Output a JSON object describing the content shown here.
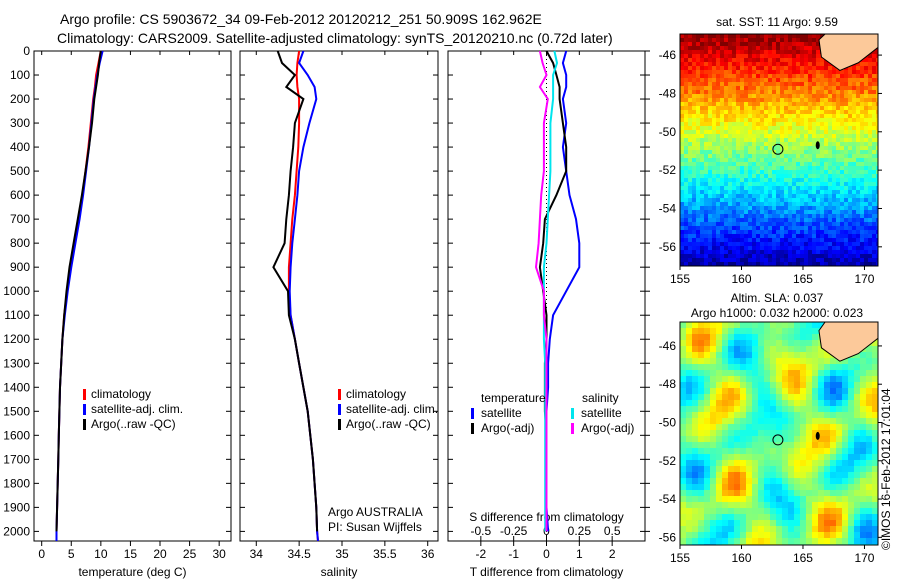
{
  "title_line1": "Argo profile: CS 5903672_34 09-Feb-2012 20120212_251 50.909S 162.962E",
  "title_line2": "Climatology: CARS2009. Satellite-adjusted climatology: synTS_20120210.nc (0.72d later)",
  "colors": {
    "climatology": "#ff0000",
    "satellite": "#0000ff",
    "argo": "#000000",
    "sal_satellite": "#00e5ee",
    "sal_argo": "#ff00ff"
  },
  "chart_data": [
    {
      "type": "line",
      "name": "temperature",
      "xlabel": "temperature (deg C)",
      "xlim": [
        -1.3,
        32
      ],
      "xticks": [
        0,
        5,
        10,
        15,
        20,
        25,
        30
      ],
      "ylim": [
        0,
        2040
      ],
      "yreverse": true,
      "yticks": [
        0,
        100,
        200,
        300,
        400,
        500,
        600,
        700,
        800,
        900,
        1000,
        1100,
        1200,
        1300,
        1400,
        1500,
        1600,
        1700,
        1800,
        1900,
        2000
      ],
      "depth": [
        0,
        50,
        100,
        150,
        200,
        300,
        400,
        500,
        600,
        700,
        800,
        900,
        1000,
        1100,
        1200,
        1300,
        1400,
        1500,
        1600,
        1700,
        1800,
        1900,
        2000,
        2040
      ],
      "legend": [
        "climatology",
        "satellite-adj. clim.",
        "Argo(..raw -QC)"
      ],
      "series": [
        {
          "name": "climatology",
          "color": "#ff0000",
          "values": [
            10,
            9.6,
            9.2,
            9.0,
            8.7,
            8.3,
            7.9,
            7.4,
            6.9,
            6.3,
            5.6,
            4.9,
            4.3,
            3.8,
            3.5,
            3.3,
            3.1,
            3.0,
            2.9,
            2.8,
            2.7,
            2.6,
            2.5,
            2.5
          ]
        },
        {
          "name": "satellite-adj. clim.",
          "color": "#0000ff",
          "values": [
            10.3,
            9.8,
            9.4,
            9.1,
            8.8,
            8.4,
            8.0,
            7.5,
            7.0,
            6.4,
            5.7,
            5.0,
            4.4,
            3.9,
            3.5,
            3.3,
            3.1,
            3.0,
            2.9,
            2.8,
            2.7,
            2.6,
            2.5,
            2.5
          ]
        },
        {
          "name": "Argo(..raw -QC)",
          "color": "#000000",
          "values": [
            10.0,
            9.7,
            9.5,
            9.2,
            8.9,
            8.5,
            8.0,
            7.4,
            6.8,
            6.1,
            5.4,
            4.7,
            4.2,
            3.8,
            3.5,
            3.3,
            3.1,
            3.0,
            2.9,
            2.8,
            2.7,
            2.6,
            2.5,
            null
          ]
        }
      ]
    },
    {
      "type": "line",
      "name": "salinity",
      "xlabel": "salinity",
      "xlim": [
        33.81,
        36.12
      ],
      "xticks": [
        34,
        34.5,
        35,
        35.5,
        36
      ],
      "ylim": [
        0,
        2040
      ],
      "yreverse": true,
      "depth": [
        0,
        50,
        100,
        150,
        200,
        300,
        400,
        500,
        600,
        700,
        800,
        900,
        1000,
        1100,
        1200,
        1300,
        1400,
        1500,
        1600,
        1700,
        1800,
        1900,
        2000,
        2040
      ],
      "legend": [
        "climatology",
        "satellite-adj. clim.",
        "Argo(..raw -QC)"
      ],
      "annotation": [
        "Argo AUSTRALIA",
        "PI: Susan Wijffels"
      ],
      "series": [
        {
          "name": "climatology",
          "color": "#ff0000",
          "values": [
            34.5,
            34.48,
            34.47,
            34.48,
            34.5,
            34.5,
            34.49,
            34.47,
            34.45,
            34.42,
            34.4,
            34.38,
            34.38,
            34.4,
            34.45,
            34.5,
            34.55,
            34.6,
            34.63,
            34.66,
            34.68,
            34.7,
            34.71,
            34.72
          ]
        },
        {
          "name": "satellite-adj. clim.",
          "color": "#0000ff",
          "values": [
            34.55,
            34.5,
            34.6,
            34.68,
            34.7,
            34.62,
            34.55,
            34.5,
            34.48,
            34.45,
            34.42,
            34.4,
            34.39,
            34.4,
            34.45,
            34.5,
            34.55,
            34.6,
            34.63,
            34.66,
            34.68,
            34.7,
            34.71,
            34.72
          ]
        },
        {
          "name": "Argo(..raw -QC)",
          "color": "#000000",
          "values": [
            34.25,
            34.3,
            34.45,
            34.35,
            34.55,
            34.45,
            34.43,
            34.4,
            34.38,
            34.35,
            34.33,
            34.2,
            34.37,
            34.38,
            34.45,
            34.5,
            34.55,
            34.6,
            34.63,
            34.66,
            34.68,
            34.7,
            34.71,
            null
          ]
        }
      ]
    },
    {
      "type": "line",
      "name": "difference",
      "xlabel": "T difference from climatology",
      "xlim": [
        -3,
        3
      ],
      "xticks": [
        -2,
        -1,
        0,
        1,
        2
      ],
      "s_axis_label": "S difference from climatology",
      "s_xlim": [
        -0.75,
        0.75
      ],
      "s_xticks": [
        "-0.5",
        "-0.25",
        "0",
        "0.25",
        "0.5"
      ],
      "s_xtick_values": [
        -0.5,
        -0.25,
        0,
        0.25,
        0.5
      ],
      "ylim": [
        0,
        2040
      ],
      "yreverse": true,
      "depth": [
        0,
        50,
        100,
        150,
        200,
        300,
        400,
        500,
        600,
        700,
        800,
        900,
        1000,
        1100,
        1200,
        1300,
        1400,
        1500,
        1600,
        1700,
        1800,
        1900,
        2000
      ],
      "legend_headers": [
        "temperature",
        "salinity"
      ],
      "legend_t": [
        "satellite",
        "Argo(-adj)"
      ],
      "legend_s": [
        "satellite",
        "Argo(-adj)"
      ],
      "series": [
        {
          "name": "T satellite",
          "axis": "T",
          "color": "#0000ff",
          "values": [
            0.6,
            0.5,
            0.6,
            0.6,
            0.5,
            0.6,
            0.5,
            0.6,
            0.7,
            0.9,
            1.0,
            1.0,
            0.6,
            0.2,
            0.1,
            0.05,
            0.05,
            0,
            0,
            0,
            0,
            0,
            0.05
          ]
        },
        {
          "name": "T Argo(-adj)",
          "axis": "T",
          "color": "#000000",
          "values": [
            0,
            0.2,
            0.3,
            0.4,
            0.4,
            0.5,
            0.6,
            0.6,
            0.3,
            -0.05,
            -0.1,
            -0.2,
            -0.1,
            0,
            0,
            -0.05,
            -0.05,
            -0.05,
            0,
            0,
            0,
            0,
            0
          ]
        },
        {
          "name": "S satellite",
          "axis": "S",
          "color": "#00e5ee",
          "values": [
            0.06,
            0.08,
            0.05,
            0.05,
            0.05,
            0.03,
            0.03,
            0.03,
            0.02,
            0.01,
            0,
            -0.02,
            -0.02,
            -0.02,
            -0.02,
            -0.01,
            -0.01,
            -0.01,
            -0.01,
            -0.01,
            -0.01,
            -0.01,
            -0.01
          ]
        },
        {
          "name": "S Argo(-adj)",
          "axis": "S",
          "color": "#ff00ff",
          "values": [
            -0.05,
            -0.03,
            0,
            -0.05,
            0.01,
            -0.02,
            -0.02,
            -0.02,
            -0.04,
            -0.05,
            -0.06,
            -0.08,
            -0.02,
            -0.02,
            0,
            0,
            0,
            0,
            0,
            0,
            0,
            0,
            0
          ]
        }
      ]
    },
    {
      "type": "heatmap",
      "name": "sst-map",
      "title": "sat. SST: 11 Argo: 9.59",
      "lon_range": [
        155,
        171.1
      ],
      "lat_range": [
        -57,
        -44.9
      ],
      "xticks": [
        155,
        160,
        165,
        170
      ],
      "yticks": [
        -46,
        -48,
        -50,
        -52,
        -54,
        -56
      ],
      "argo_position": {
        "lat": -50.909,
        "lon": 162.962
      }
    },
    {
      "type": "heatmap",
      "name": "sla-map",
      "title": [
        "Altim. SLA: 0.037",
        "Argo h1000: 0.032 h2000: 0.023"
      ],
      "lon_range": [
        155,
        171.1
      ],
      "lat_range": [
        -56.4,
        -44.75
      ],
      "xticks": [
        155,
        160,
        165,
        170
      ],
      "yticks": [
        -46,
        -48,
        -50,
        -52,
        -54,
        -56
      ],
      "argo_position": {
        "lat": -50.909,
        "lon": 162.962
      }
    }
  ],
  "credit": "©IMOS 16-Feb-2012 17:01:04"
}
